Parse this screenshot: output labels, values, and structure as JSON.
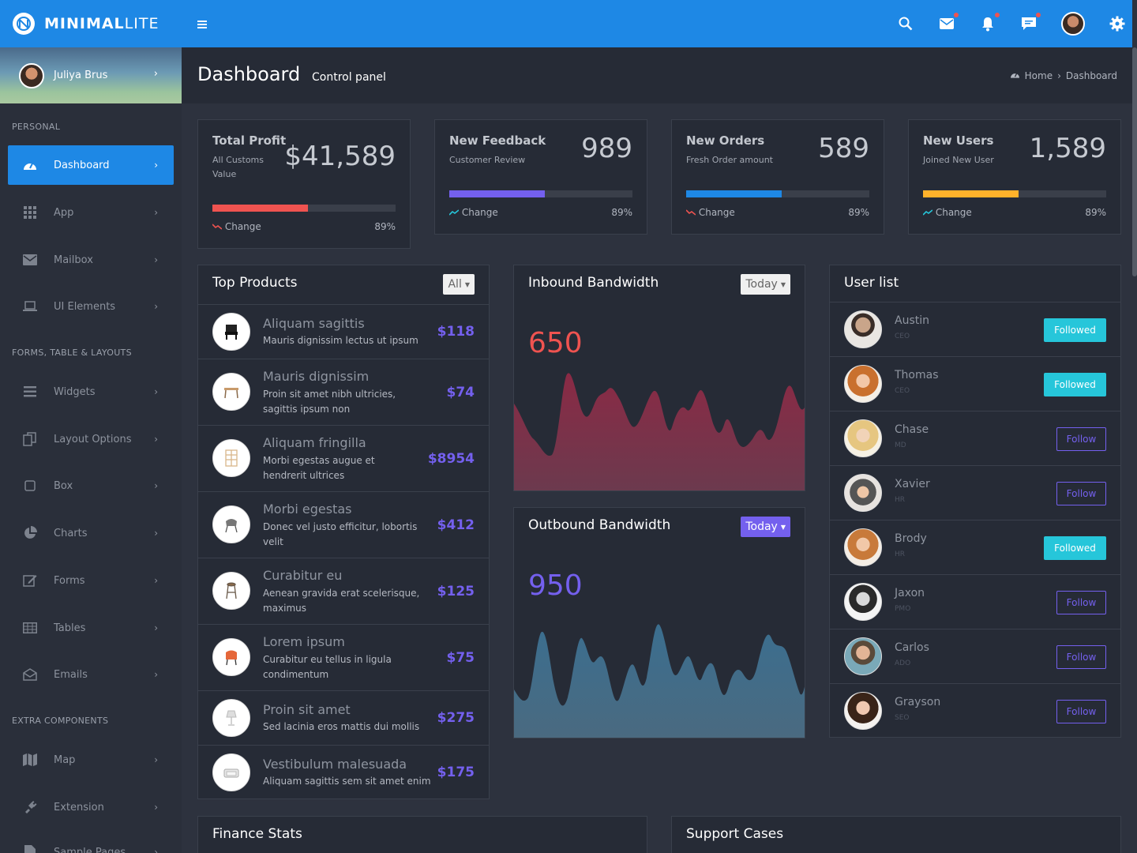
{
  "brand": {
    "bold": "MINIMAL",
    "light": "LITE"
  },
  "topbar": {
    "icons": [
      "menu-icon",
      "search-icon",
      "mail-icon",
      "bell-icon",
      "chat-icon",
      "user-avatar",
      "gear-icon"
    ]
  },
  "user": {
    "name": "Juliya Brus"
  },
  "sidebar": {
    "headers": [
      "PERSONAL",
      "FORMS, TABLE & LAYOUTS",
      "EXTRA COMPONENTS"
    ],
    "items": [
      {
        "label": "Dashboard",
        "icon": "dashboard-icon",
        "active": true
      },
      {
        "label": "App",
        "icon": "grid-icon"
      },
      {
        "label": "Mailbox",
        "icon": "mail-icon"
      },
      {
        "label": "UI Elements",
        "icon": "laptop-icon"
      },
      {
        "label": "Widgets",
        "icon": "bars-icon"
      },
      {
        "label": "Layout Options",
        "icon": "copy-icon"
      },
      {
        "label": "Box",
        "icon": "square-icon"
      },
      {
        "label": "Charts",
        "icon": "pie-chart-icon"
      },
      {
        "label": "Forms",
        "icon": "edit-icon"
      },
      {
        "label": "Tables",
        "icon": "table-icon"
      },
      {
        "label": "Emails",
        "icon": "envelope-open-icon"
      },
      {
        "label": "Map",
        "icon": "map-icon"
      },
      {
        "label": "Extension",
        "icon": "plug-icon"
      },
      {
        "label": "Sample Pages",
        "icon": "file-icon"
      }
    ]
  },
  "header": {
    "title": "Dashboard",
    "subtitle": "Control panel",
    "breadcrumb": [
      "Home",
      "Dashboard"
    ]
  },
  "stats": [
    {
      "title": "Total Profit",
      "sub": "All Customs Value",
      "value": "$41,589",
      "progress": 0.52,
      "color": "#ef5350",
      "trend": "down",
      "change_label": "Change",
      "change": "89%"
    },
    {
      "title": "New Feedback",
      "sub": "Customer Review",
      "value": "989",
      "progress": 0.52,
      "color": "#7460ee",
      "trend": "up",
      "change_label": "Change",
      "change": "89%"
    },
    {
      "title": "New Orders",
      "sub": "Fresh Order amount",
      "value": "589",
      "progress": 0.52,
      "color": "#1e88e5",
      "trend": "down",
      "change_label": "Change",
      "change": "89%"
    },
    {
      "title": "New Users",
      "sub": "Joined New User",
      "value": "1,589",
      "progress": 0.52,
      "color": "#ffb22b",
      "trend": "up",
      "change_label": "Change",
      "change": "89%"
    }
  ],
  "products": {
    "title": "Top Products",
    "filter": "All",
    "items": [
      {
        "name": "Aliquam sagittis",
        "desc": "Mauris dignissim lectus ut ipsum",
        "price": "$118",
        "icon": "chair-icon"
      },
      {
        "name": "Mauris dignissim",
        "desc": "Proin sit amet nibh ultricies, sagittis ipsum non",
        "price": "$74",
        "icon": "table-icon"
      },
      {
        "name": "Aliquam fringilla",
        "desc": "Morbi egestas augue et hendrerit ultrices",
        "price": "$8954",
        "icon": "shelf-icon"
      },
      {
        "name": "Morbi egestas",
        "desc": "Donec vel justo efficitur, lobortis velit",
        "price": "$412",
        "icon": "chair-icon"
      },
      {
        "name": "Curabitur eu",
        "desc": "Aenean gravida erat scelerisque, maximus",
        "price": "$125",
        "icon": "stool-icon"
      },
      {
        "name": "Lorem ipsum",
        "desc": "Curabitur eu tellus in ligula condimentum",
        "price": "$75",
        "icon": "armchair-icon"
      },
      {
        "name": "Proin sit amet",
        "desc": "Sed lacinia eros mattis dui mollis",
        "price": "$275",
        "icon": "lamp-icon"
      },
      {
        "name": "Vestibulum malesuada",
        "desc": "Aliquam sagittis sem sit amet enim",
        "price": "$175",
        "icon": "sofa-icon"
      }
    ]
  },
  "inbound": {
    "title": "Inbound Bandwidth",
    "filter": "Today",
    "value": "650",
    "color": "#ef5350"
  },
  "outbound": {
    "title": "Outbound Bandwidth",
    "filter": "Today",
    "value": "950",
    "color": "#7460ee"
  },
  "users": {
    "title": "User list",
    "items": [
      {
        "name": "Austin",
        "role": "CEO",
        "action": "Followed",
        "state": "followed"
      },
      {
        "name": "Thomas",
        "role": "CEO",
        "action": "Followed",
        "state": "followed"
      },
      {
        "name": "Chase",
        "role": "MD",
        "action": "Follow",
        "state": "follow"
      },
      {
        "name": "Xavier",
        "role": "HR",
        "action": "Follow",
        "state": "follow"
      },
      {
        "name": "Brody",
        "role": "HR",
        "action": "Followed",
        "state": "followed"
      },
      {
        "name": "Jaxon",
        "role": "PMO",
        "action": "Follow",
        "state": "follow"
      },
      {
        "name": "Carlos",
        "role": "ADO",
        "action": "Follow",
        "state": "follow"
      },
      {
        "name": "Grayson",
        "role": "SEO",
        "action": "Follow",
        "state": "follow"
      }
    ]
  },
  "bottom": {
    "finance_title": "Finance Stats",
    "support_title": "Support Cases"
  }
}
